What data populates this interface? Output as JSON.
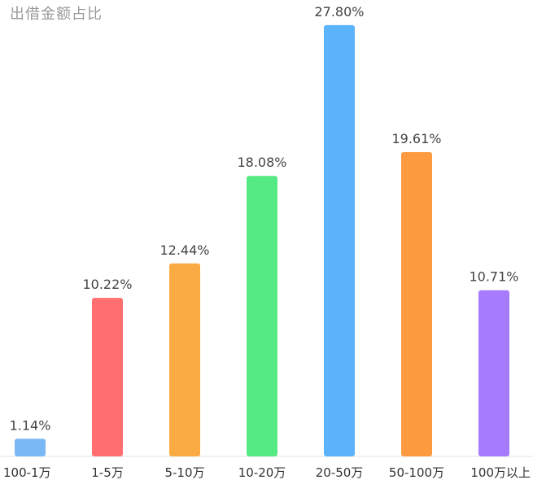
{
  "chart_data": {
    "type": "bar",
    "title": "出借金额占比",
    "categories": [
      "100-1万",
      "1-5万",
      "5-10万",
      "10-20万",
      "20-50万",
      "50-100万",
      "100万以上"
    ],
    "values": [
      1.14,
      10.22,
      12.44,
      18.08,
      27.8,
      19.61,
      10.71
    ],
    "value_labels": [
      "1.14%",
      "10.22%",
      "12.44%",
      "18.08%",
      "27.80%",
      "19.61%",
      "10.71%"
    ],
    "colors": [
      "#7ab8f5",
      "#ff6f6f",
      "#fbab44",
      "#55ea83",
      "#5bb3fb",
      "#fe9b40",
      "#a67bfe"
    ],
    "ylim": [
      0,
      28
    ],
    "grid": false,
    "legend": "none",
    "xlabel": "",
    "ylabel": ""
  }
}
